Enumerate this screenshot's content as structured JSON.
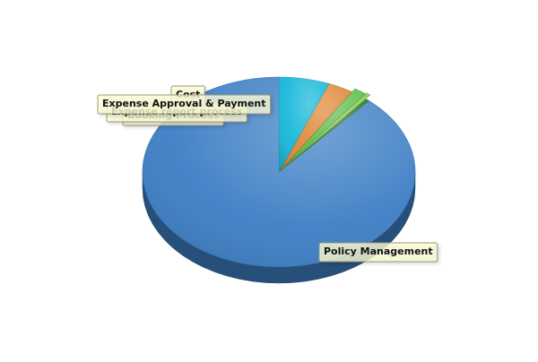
{
  "chart_data": {
    "type": "pie",
    "style": "3d",
    "legend": "none",
    "grid": false,
    "slices": [
      {
        "label": "Policy Management",
        "value": 88.5,
        "color": "#3e7fc5"
      },
      {
        "label": "Booking Process",
        "value": 0.5,
        "color": "#2f7d2f"
      },
      {
        "label": "Expense report process",
        "value": 0.5,
        "color": "#8fcf5b"
      },
      {
        "label": "Expense Approval & Payment",
        "value": 1.5,
        "color": "#5fbf4f"
      },
      {
        "label": "Cost",
        "value": 3.0,
        "color": "#e08a3c"
      },
      {
        "label": "",
        "value": 6.0,
        "color": "#1ab8da"
      }
    ]
  }
}
